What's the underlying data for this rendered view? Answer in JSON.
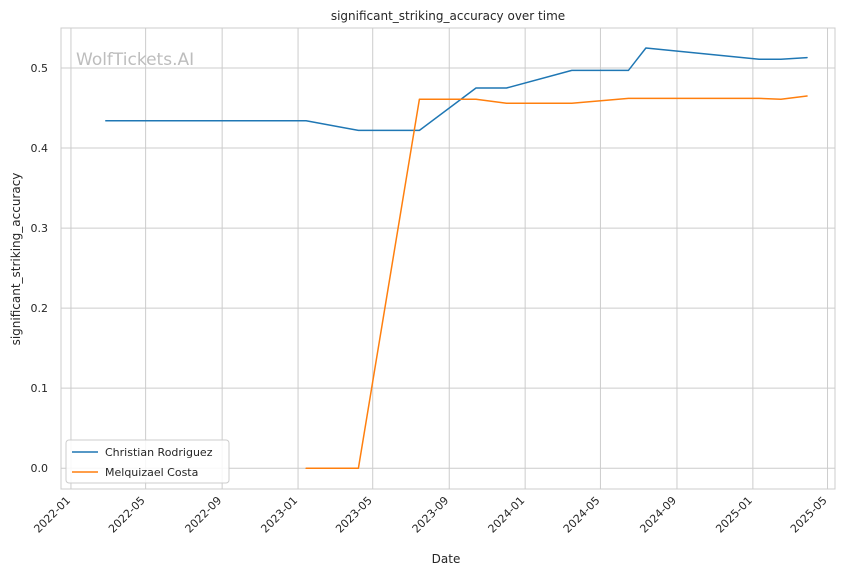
{
  "chart_data": {
    "type": "line",
    "title": "significant_striking_accuracy over time",
    "xlabel": "Date",
    "ylabel": "significant_striking_accuracy",
    "watermark": "WolfTickets.AI",
    "x_axis": {
      "kind": "date",
      "range": [
        "2021-12-16",
        "2025-05-13"
      ],
      "ticks": [
        {
          "date": "2022-01-01",
          "label": "2022-01"
        },
        {
          "date": "2022-05-01",
          "label": "2022-05"
        },
        {
          "date": "2022-09-01",
          "label": "2022-09"
        },
        {
          "date": "2023-01-01",
          "label": "2023-01"
        },
        {
          "date": "2023-05-01",
          "label": "2023-05"
        },
        {
          "date": "2023-09-01",
          "label": "2023-09"
        },
        {
          "date": "2024-01-01",
          "label": "2024-01"
        },
        {
          "date": "2024-05-01",
          "label": "2024-05"
        },
        {
          "date": "2024-09-01",
          "label": "2024-09"
        },
        {
          "date": "2025-01-01",
          "label": "2025-01"
        },
        {
          "date": "2025-05-01",
          "label": "2025-05"
        }
      ]
    },
    "y_axis": {
      "range": [
        -0.026,
        0.55
      ],
      "ticks": [
        {
          "value": 0.0,
          "label": "0.0"
        },
        {
          "value": 0.1,
          "label": "0.1"
        },
        {
          "value": 0.2,
          "label": "0.2"
        },
        {
          "value": 0.3,
          "label": "0.3"
        },
        {
          "value": 0.4,
          "label": "0.4"
        },
        {
          "value": 0.5,
          "label": "0.5"
        }
      ]
    },
    "grid": true,
    "legend_position": "lower-left",
    "series": [
      {
        "name": "Christian Rodriguez",
        "color": "#1f77b4",
        "points": [
          {
            "x": "2022-02-26",
            "y": 0.434
          },
          {
            "x": "2023-01-14",
            "y": 0.434
          },
          {
            "x": "2023-04-08",
            "y": 0.422
          },
          {
            "x": "2023-07-15",
            "y": 0.422
          },
          {
            "x": "2023-10-14",
            "y": 0.475
          },
          {
            "x": "2023-12-02",
            "y": 0.475
          },
          {
            "x": "2024-03-16",
            "y": 0.497
          },
          {
            "x": "2024-06-15",
            "y": 0.497
          },
          {
            "x": "2024-07-13",
            "y": 0.525
          },
          {
            "x": "2025-01-11",
            "y": 0.511
          },
          {
            "x": "2025-02-15",
            "y": 0.511
          },
          {
            "x": "2025-03-29",
            "y": 0.513
          }
        ]
      },
      {
        "name": "Melquizael Costa",
        "color": "#ff7f0e",
        "points": [
          {
            "x": "2023-01-14",
            "y": 0.0
          },
          {
            "x": "2023-04-08",
            "y": 0.0
          },
          {
            "x": "2023-07-15",
            "y": 0.461
          },
          {
            "x": "2023-10-14",
            "y": 0.461
          },
          {
            "x": "2023-12-02",
            "y": 0.456
          },
          {
            "x": "2024-03-16",
            "y": 0.456
          },
          {
            "x": "2024-06-15",
            "y": 0.462
          },
          {
            "x": "2025-01-11",
            "y": 0.462
          },
          {
            "x": "2025-02-15",
            "y": 0.461
          },
          {
            "x": "2025-03-29",
            "y": 0.465
          }
        ]
      }
    ]
  }
}
